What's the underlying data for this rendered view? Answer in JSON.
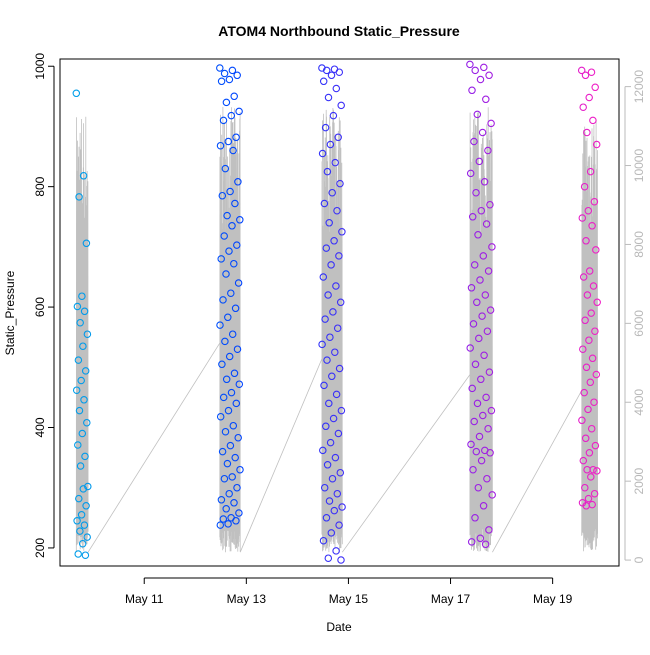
{
  "chart_data": {
    "type": "scatter",
    "title": "ATOM4 Northbound Static_Pressure",
    "xlabel": "Date",
    "ylabel": "Static_Pressure",
    "x_unit": "day of May",
    "x_ticks": [
      {
        "label": "May 11",
        "value": 11
      },
      {
        "label": "May 13",
        "value": 13
      },
      {
        "label": "May 15",
        "value": 15
      },
      {
        "label": "May 17",
        "value": 17
      },
      {
        "label": "May 19",
        "value": 19
      }
    ],
    "y_ticks": [
      "200",
      "400",
      "600",
      "800",
      "1000"
    ],
    "y2_ticks": [
      "0",
      "2000",
      "4000",
      "6000",
      "8000",
      "10000",
      "12000"
    ],
    "xlim": [
      9.35,
      20.3
    ],
    "ylim": [
      170,
      1012
    ],
    "y2lim": [
      -150,
      12700
    ],
    "marker": "open-circle",
    "color_gradient": [
      "#00a8e8",
      "#0040ff",
      "#7a1ff0",
      "#ff1fc0"
    ],
    "line_series_color": "#c0c0c0",
    "clusters": [
      {
        "date": "May 9-10",
        "x_range": [
          9.67,
          9.9
        ],
        "values": [
          955,
          818,
          783,
          706,
          618,
          601,
          593,
          574,
          555,
          535,
          512,
          494,
          478,
          462,
          446,
          428,
          408,
          390,
          371,
          352,
          336,
          302,
          298,
          282,
          270,
          255,
          245,
          238,
          228,
          218,
          207,
          190,
          188
        ]
      },
      {
        "date": "May 12-13",
        "x_range": [
          12.48,
          12.88
        ],
        "values": [
          997,
          993,
          988,
          985,
          978,
          975,
          950,
          940,
          925,
          918,
          910,
          882,
          875,
          868,
          860,
          830,
          808,
          792,
          785,
          772,
          752,
          745,
          735,
          718,
          703,
          693,
          680,
          672,
          655,
          640,
          623,
          612,
          598,
          583,
          570,
          555,
          543,
          530,
          518,
          505,
          490,
          480,
          472,
          458,
          450,
          440,
          428,
          418,
          403,
          393,
          383,
          370,
          360,
          350,
          340,
          330,
          318,
          315,
          300,
          290,
          280,
          275,
          265,
          258,
          250,
          248,
          245,
          240,
          238
        ]
      },
      {
        "date": "May 14-15",
        "x_range": [
          14.48,
          14.88
        ],
        "values": [
          997,
          995,
          993,
          990,
          985,
          975,
          963,
          948,
          935,
          918,
          898,
          882,
          870,
          855,
          840,
          825,
          805,
          790,
          772,
          760,
          740,
          725,
          710,
          698,
          685,
          670,
          650,
          635,
          620,
          608,
          592,
          580,
          565,
          550,
          538,
          525,
          512,
          498,
          485,
          470,
          455,
          440,
          428,
          415,
          402,
          390,
          375,
          362,
          350,
          338,
          325,
          315,
          300,
          290,
          278,
          268,
          262,
          250,
          238,
          225,
          212,
          195,
          183,
          180
        ]
      },
      {
        "date": "May 17",
        "x_range": [
          17.38,
          17.82
        ],
        "values": [
          1003,
          998,
          993,
          985,
          978,
          960,
          945,
          920,
          905,
          890,
          875,
          860,
          842,
          822,
          808,
          790,
          770,
          760,
          750,
          738,
          720,
          700,
          685,
          670,
          660,
          645,
          632,
          620,
          608,
          595,
          585,
          572,
          560,
          548,
          532,
          520,
          505,
          492,
          480,
          465,
          450,
          440,
          428,
          420,
          410,
          398,
          385,
          372,
          362,
          360,
          358,
          345,
          330,
          315,
          300,
          288,
          270,
          250,
          230,
          216,
          210,
          206
        ]
      },
      {
        "date": "May 19-20",
        "x_range": [
          19.57,
          19.88
        ],
        "values": [
          993,
          990,
          985,
          965,
          948,
          932,
          910,
          890,
          870,
          825,
          800,
          775,
          760,
          748,
          735,
          710,
          695,
          660,
          650,
          635,
          620,
          608,
          590,
          578,
          560,
          545,
          530,
          515,
          500,
          488,
          475,
          458,
          442,
          430,
          412,
          398,
          382,
          370,
          358,
          345,
          330,
          330,
          328,
          318,
          300,
          290,
          282,
          275,
          272,
          270
        ]
      }
    ]
  }
}
